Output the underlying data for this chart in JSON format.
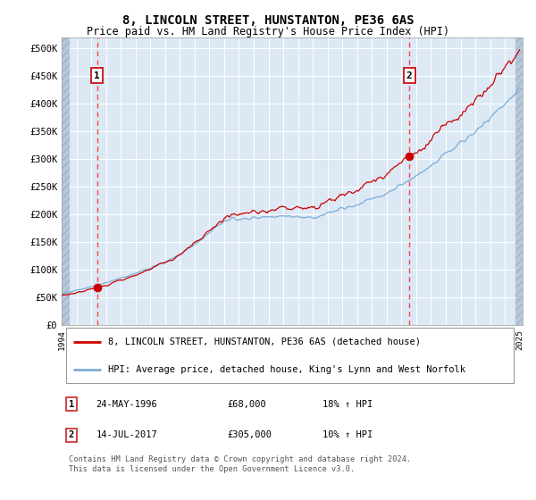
{
  "title": "8, LINCOLN STREET, HUNSTANTON, PE36 6AS",
  "subtitle": "Price paid vs. HM Land Registry's House Price Index (HPI)",
  "legend_line1": "8, LINCOLN STREET, HUNSTANTON, PE36 6AS (detached house)",
  "legend_line2": "HPI: Average price, detached house, King's Lynn and West Norfolk",
  "annotation1_label": "1",
  "annotation1_date": "24-MAY-1996",
  "annotation1_price": "£68,000",
  "annotation1_hpi": "18% ↑ HPI",
  "annotation2_label": "2",
  "annotation2_date": "14-JUL-2017",
  "annotation2_price": "£305,000",
  "annotation2_hpi": "10% ↑ HPI",
  "footer": "Contains HM Land Registry data © Crown copyright and database right 2024.\nThis data is licensed under the Open Government Licence v3.0.",
  "sale1_year": 1996.39,
  "sale1_price": 68000,
  "sale2_year": 2017.53,
  "sale2_price": 305000,
  "hpi_color": "#7aacd6",
  "price_color": "#cc0000",
  "marker_color": "#cc0000",
  "bg_color": "#dce9f5",
  "grid_color": "#ffffff",
  "dashed_line_color": "#ff4444",
  "ylim_max": 520000,
  "yticks": [
    0,
    50000,
    100000,
    150000,
    200000,
    250000,
    300000,
    350000,
    400000,
    450000,
    500000
  ]
}
